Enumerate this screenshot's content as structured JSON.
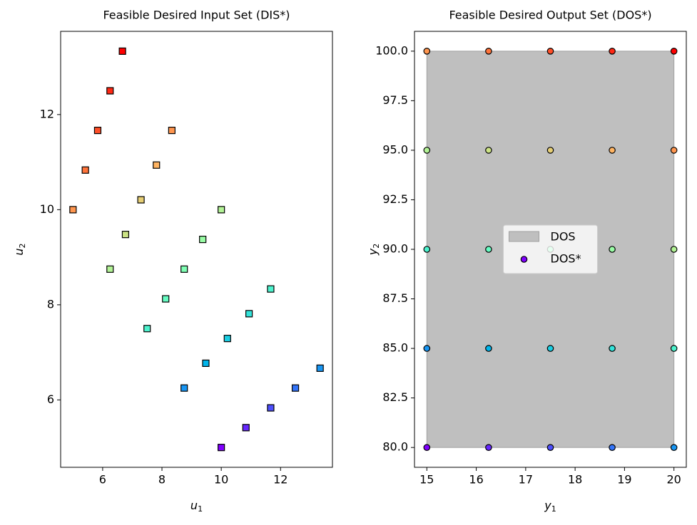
{
  "chart_data": [
    {
      "type": "scatter",
      "title": "Feasible Desired Input Set (DIS*)",
      "xlabel": "u",
      "xlabel_sub": "1",
      "ylabel": "u",
      "ylabel_sub": "2",
      "marker": "square",
      "xlim": [
        4.583,
        13.75
      ],
      "ylim": [
        4.583,
        13.75
      ],
      "xticks": [
        6,
        8,
        10,
        12
      ],
      "yticks": [
        6,
        8,
        10,
        12
      ],
      "x": [
        10,
        10.833,
        11.667,
        12.5,
        13.333,
        8.75,
        9.479,
        10.208,
        10.938,
        11.667,
        7.5,
        8.125,
        8.75,
        9.375,
        10,
        6.25,
        6.771,
        7.292,
        7.813,
        8.333,
        5,
        5.417,
        5.833,
        6.25,
        6.667
      ],
      "y": [
        5,
        5.417,
        5.833,
        6.25,
        6.667,
        6.25,
        6.771,
        7.292,
        7.813,
        8.333,
        7.5,
        8.125,
        8.75,
        9.375,
        10,
        8.75,
        9.479,
        10.208,
        10.938,
        11.667,
        10,
        10.833,
        11.667,
        12.5,
        13.333
      ],
      "colors": [
        "#8000ff",
        "#6628fe",
        "#4d4ffc",
        "#3374f8",
        "#1996f3",
        "#1996f3",
        "#00b5eb",
        "#1acee3",
        "#33e3da",
        "#4df3ce",
        "#4df3ce",
        "#66fcc2",
        "#80ffb4",
        "#99fca5",
        "#b3f396",
        "#b3f396",
        "#cce385",
        "#e6ce74",
        "#ffb462",
        "#ff964f",
        "#ff964f",
        "#ff743b",
        "#ff4f28",
        "#ff2814",
        "#ff0000"
      ]
    },
    {
      "type": "scatter",
      "title": "Feasible Desired Output Set (DOS*)",
      "xlabel": "y",
      "xlabel_sub": "1",
      "ylabel": "y",
      "ylabel_sub": "2",
      "marker": "circle",
      "legend": "center",
      "xlim": [
        14.75,
        20.25
      ],
      "ylim": [
        79,
        101
      ],
      "xticks": [
        15,
        16,
        17,
        18,
        19,
        20
      ],
      "yticks": [
        {
          "value": 80,
          "label": "80.0"
        },
        {
          "value": 82.5,
          "label": "82.5"
        },
        {
          "value": 85,
          "label": "85.0"
        },
        {
          "value": 87.5,
          "label": "87.5"
        },
        {
          "value": 90,
          "label": "90.0"
        },
        {
          "value": 92.5,
          "label": "92.5"
        },
        {
          "value": 95,
          "label": "95.0"
        },
        {
          "value": 97.5,
          "label": "97.5"
        },
        {
          "value": 100,
          "label": "100.0"
        }
      ],
      "region": {
        "name": "DOS",
        "x": [
          15,
          20
        ],
        "y": [
          80,
          100
        ],
        "color": "#bfbfbf"
      },
      "series_name": "DOS*",
      "legend_color": "#8000ff",
      "x": [
        15,
        16.25,
        17.5,
        18.75,
        20,
        15,
        16.25,
        17.5,
        18.75,
        20,
        15,
        16.25,
        17.5,
        18.75,
        20,
        15,
        16.25,
        17.5,
        18.75,
        20,
        15,
        16.25,
        17.5,
        18.75,
        20
      ],
      "y": [
        80,
        80,
        80,
        80,
        80,
        85,
        85,
        85,
        85,
        85,
        90,
        90,
        90,
        90,
        90,
        95,
        95,
        95,
        95,
        95,
        100,
        100,
        100,
        100,
        100
      ],
      "colors": [
        "#8000ff",
        "#6628fe",
        "#4d4ffc",
        "#3374f8",
        "#1996f3",
        "#1996f3",
        "#00b5eb",
        "#1acee3",
        "#33e3da",
        "#4df3ce",
        "#4df3ce",
        "#66fcc2",
        "#80ffb4",
        "#99fca5",
        "#b3f396",
        "#b3f396",
        "#cce385",
        "#e6ce74",
        "#ffb462",
        "#ff964f",
        "#ff964f",
        "#ff743b",
        "#ff4f28",
        "#ff2814",
        "#ff0000"
      ]
    }
  ]
}
